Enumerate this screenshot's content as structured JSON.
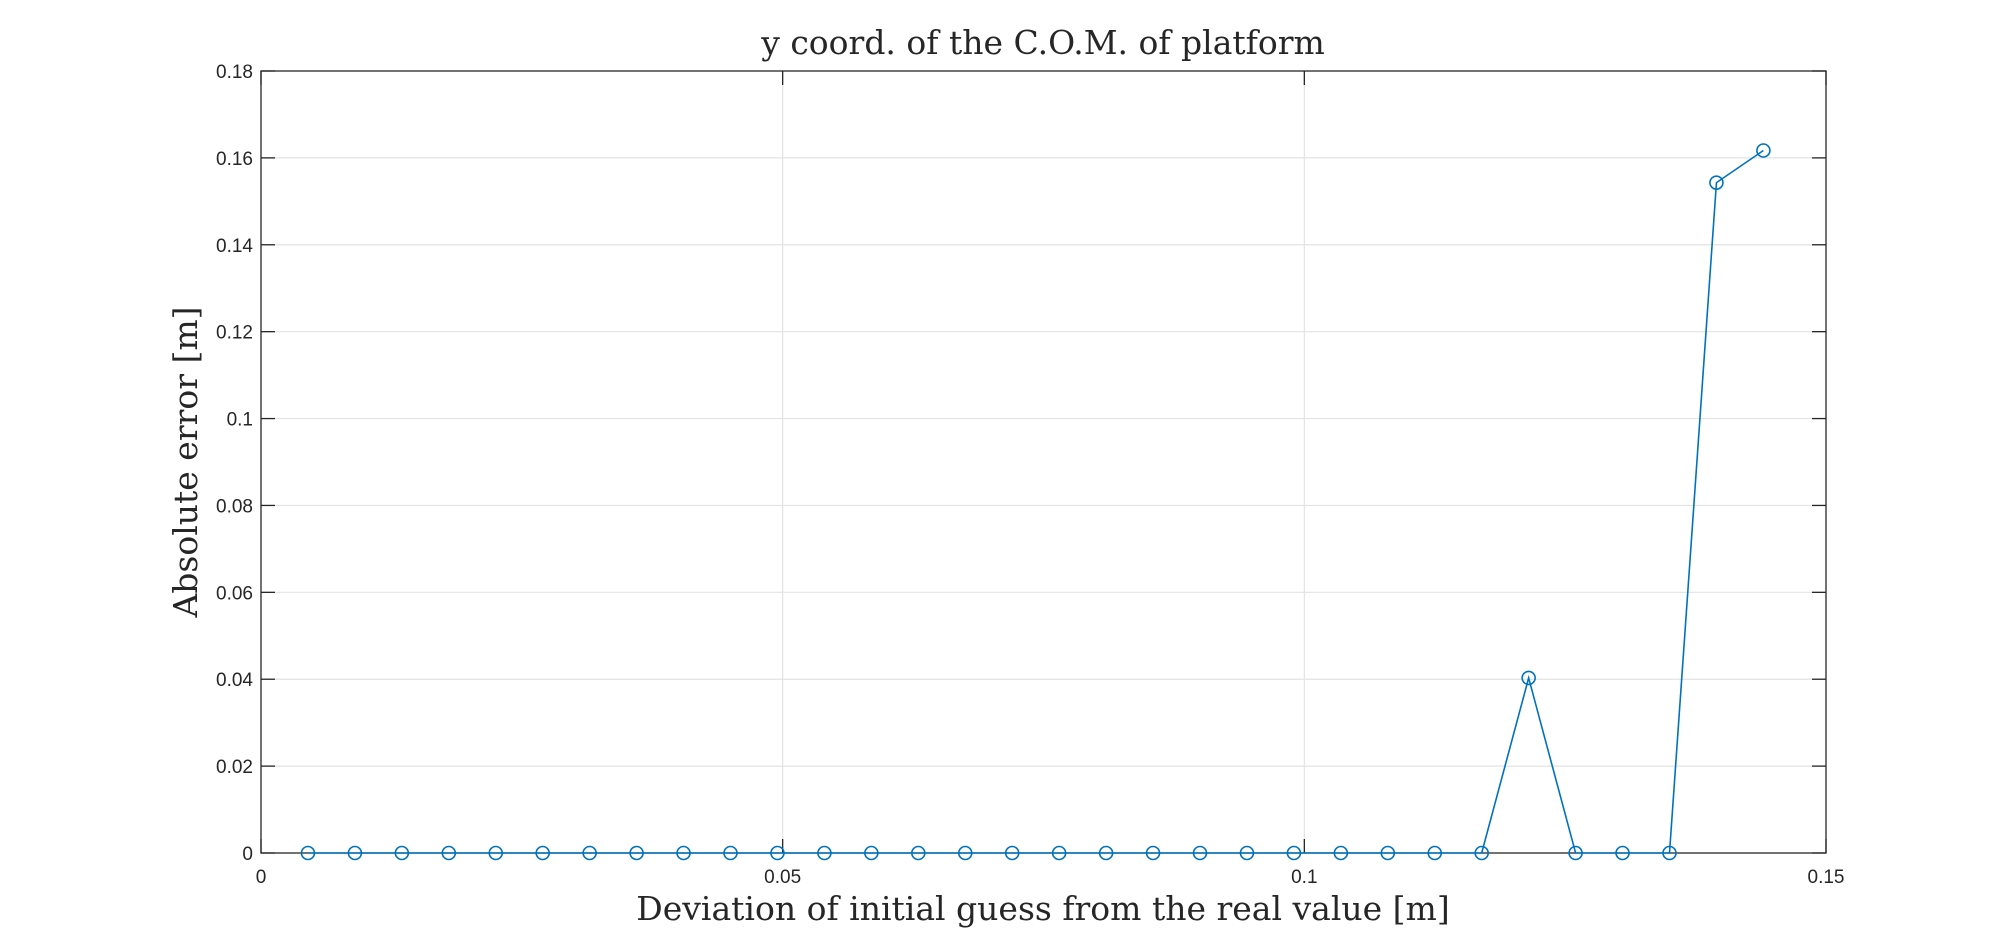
{
  "chart_data": {
    "type": "line",
    "title": "y coord. of the C.O.M. of platform",
    "xlabel": "Deviation of initial guess from the real value [m]",
    "ylabel": "Absolute error [m]",
    "xlim": [
      0,
      0.15
    ],
    "ylim": [
      0,
      0.18
    ],
    "xticks": [
      0,
      0.05,
      0.1,
      0.15
    ],
    "xtick_labels": [
      "0",
      "0.05",
      "0.1",
      "0.15"
    ],
    "yticks": [
      0,
      0.02,
      0.04,
      0.06,
      0.08,
      0.1,
      0.12,
      0.14,
      0.16,
      0.18
    ],
    "ytick_labels": [
      "0",
      "0.02",
      "0.04",
      "0.06",
      "0.08",
      "0.1",
      "0.12",
      "0.14",
      "0.16",
      "0.18"
    ],
    "grid": true,
    "marker": "circle",
    "color": "#0072BD",
    "series": [
      {
        "x": [
          0.0045,
          0.009,
          0.0135,
          0.018,
          0.0225,
          0.027,
          0.0315,
          0.036,
          0.0405,
          0.045,
          0.0495,
          0.054,
          0.0585,
          0.063,
          0.0675,
          0.072,
          0.0765,
          0.081,
          0.0855,
          0.09,
          0.0945,
          0.099,
          0.1035,
          0.108,
          0.1125,
          0.117,
          0.1215,
          0.126,
          0.1305,
          0.135,
          0.1395,
          0.144
        ],
        "y": [
          0,
          0,
          0,
          0,
          0,
          0,
          0,
          0,
          0,
          0,
          0,
          0,
          0,
          0,
          0,
          0,
          0,
          0,
          0,
          0,
          0,
          0,
          0,
          0,
          0,
          0,
          0.0403,
          0,
          0,
          0,
          0.1543,
          0.1617
        ]
      }
    ]
  }
}
